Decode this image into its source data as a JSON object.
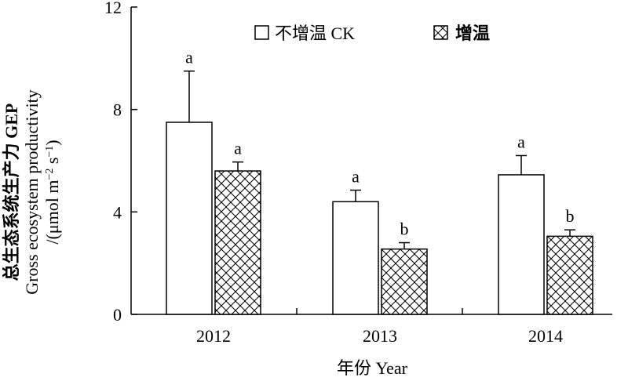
{
  "chart_data": {
    "type": "bar",
    "categories": [
      "2012",
      "2013",
      "2014"
    ],
    "series": [
      {
        "name": "不增温 CK",
        "values": [
          7.5,
          4.4,
          5.45
        ],
        "errors": [
          2.0,
          0.45,
          0.75
        ],
        "letters": [
          "a",
          "a",
          "a"
        ],
        "fill": "open"
      },
      {
        "name": "增温",
        "values": [
          5.6,
          2.55,
          3.05
        ],
        "errors": [
          0.35,
          0.25,
          0.25
        ],
        "letters": [
          "a",
          "b",
          "b"
        ],
        "fill": "crosshatch"
      }
    ],
    "ylim": [
      0,
      12
    ],
    "yticks": [
      0,
      4,
      8,
      12
    ],
    "xlabel": "年份 Year",
    "ylabel": {
      "line1": "总生态系统生产力 GEP",
      "line2": "Gross ecosystem productivity",
      "line3_prefix": "/(μmol m",
      "line3_exp1": "−2",
      "line3_mid": " s",
      "line3_exp2": "−1",
      "line3_suffix": ")"
    },
    "legend_position": "top",
    "grid": false,
    "colors": {
      "bar_stroke": "#000000",
      "bar_fill": "#ffffff"
    }
  }
}
